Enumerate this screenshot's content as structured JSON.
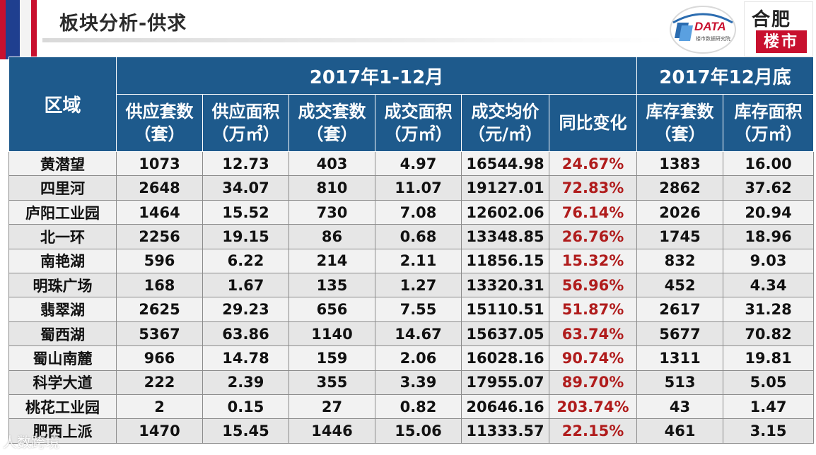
{
  "title": "板块分析-供求",
  "logo_left": {
    "text": "DATA",
    "sub": "楼市数据研究院"
  },
  "logo_right": {
    "line1": "合肥",
    "line2": "楼市"
  },
  "watermark": "人数跨境",
  "table": {
    "period_main": "2017年1-12月",
    "period_end": "2017年12月底",
    "columns": [
      {
        "line1": "区域",
        "line2": ""
      },
      {
        "line1": "供应套数",
        "line2": "（套）"
      },
      {
        "line1": "供应面积",
        "line2": "（万㎡）"
      },
      {
        "line1": "成交套数",
        "line2": "（套）"
      },
      {
        "line1": "成交面积",
        "line2": "（万㎡）"
      },
      {
        "line1": "成交均价",
        "line2": "（元/㎡）"
      },
      {
        "line1": "同比变化",
        "line2": ""
      },
      {
        "line1": "库存套数",
        "line2": "（套）"
      },
      {
        "line1": "库存面积",
        "line2": "（万㎡）"
      }
    ],
    "rows": [
      [
        "黄潜望",
        "1073",
        "12.73",
        "403",
        "4.97",
        "16544.98",
        "24.67%",
        "1383",
        "16.00"
      ],
      [
        "四里河",
        "2648",
        "34.07",
        "810",
        "11.07",
        "19127.01",
        "72.83%",
        "2862",
        "37.62"
      ],
      [
        "庐阳工业园",
        "1464",
        "15.52",
        "730",
        "7.08",
        "12602.06",
        "76.14%",
        "2026",
        "20.94"
      ],
      [
        "北一环",
        "2256",
        "19.15",
        "86",
        "0.68",
        "13348.85",
        "26.76%",
        "1745",
        "18.96"
      ],
      [
        "南艳湖",
        "596",
        "6.22",
        "214",
        "2.11",
        "11856.15",
        "15.32%",
        "832",
        "9.03"
      ],
      [
        "明珠广场",
        "168",
        "1.67",
        "135",
        "1.27",
        "13320.31",
        "56.96%",
        "452",
        "4.34"
      ],
      [
        "翡翠湖",
        "2625",
        "29.23",
        "656",
        "7.55",
        "15110.51",
        "51.87%",
        "2617",
        "31.28"
      ],
      [
        "蜀西湖",
        "5367",
        "63.86",
        "1140",
        "14.67",
        "15637.05",
        "63.74%",
        "5677",
        "70.82"
      ],
      [
        "蜀山南麓",
        "966",
        "14.78",
        "159",
        "2.06",
        "16028.16",
        "90.74%",
        "1311",
        "19.81"
      ],
      [
        "科学大道",
        "222",
        "2.39",
        "355",
        "3.39",
        "17955.07",
        "89.70%",
        "513",
        "5.05"
      ],
      [
        "桃花工业园",
        "2",
        "0.15",
        "27",
        "0.82",
        "20646.16",
        "203.74%",
        "43",
        "1.47"
      ],
      [
        "肥西上派",
        "1470",
        "15.45",
        "1446",
        "15.06",
        "11333.57",
        "22.15%",
        "461",
        "3.15"
      ]
    ]
  },
  "colors": {
    "header_bg": "#1e5a8c",
    "positive_change": "#b01c1c",
    "accent_red": "#c8102e",
    "accent_blue": "#1f3f8f"
  }
}
